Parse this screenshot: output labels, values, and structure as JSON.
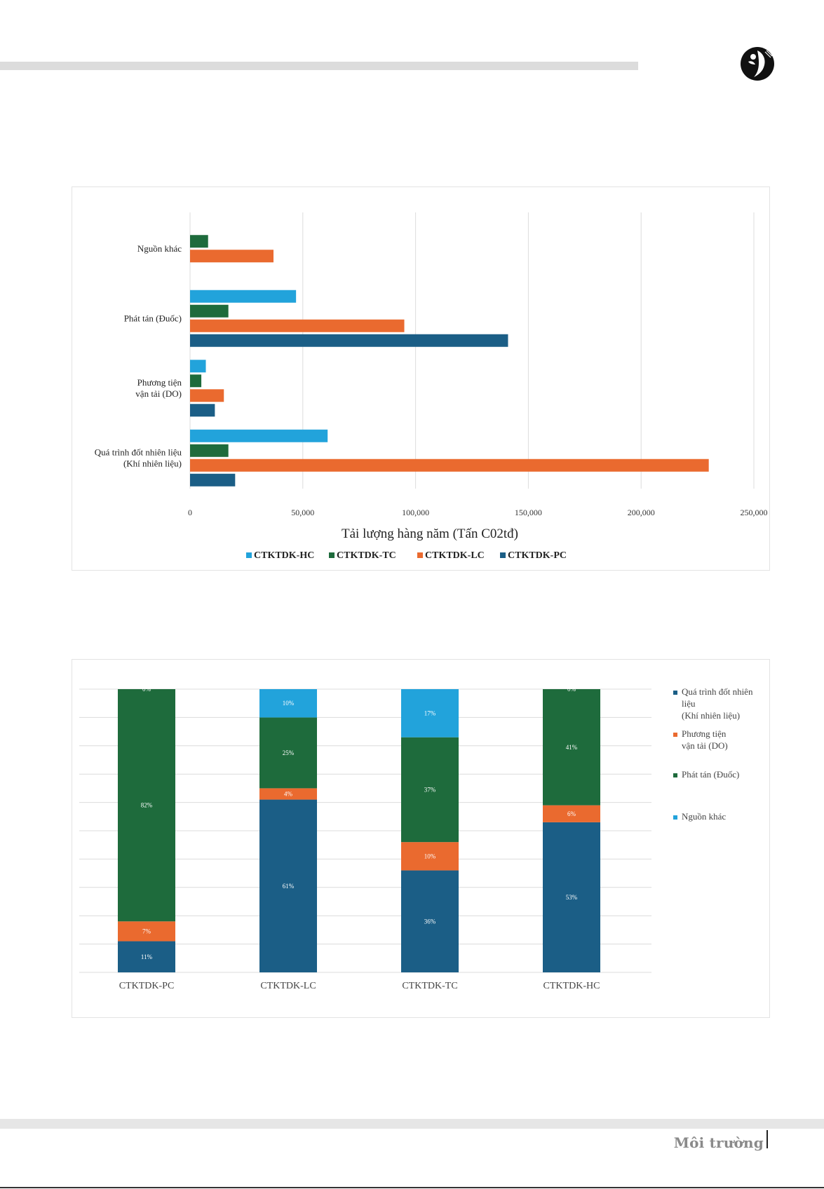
{
  "header": {
    "logo_icon": "leaf-person-logo-icon"
  },
  "footer": {
    "label": "Môi trường"
  },
  "colors": {
    "pc": "#1b5e86",
    "lc": "#ea6a2f",
    "tc": "#1e6b3c",
    "hc": "#22a3db",
    "grid": "#dcdcdc"
  },
  "chart_data": [
    {
      "type": "bar",
      "orientation": "horizontal",
      "categories": [
        "Nguồn khác",
        "Phát tán (Đuốc)",
        "Phương tiện vận tải (DO)",
        "Quá trình đốt nhiên liệu (Khí nhiên liệu)"
      ],
      "category_lines": [
        [
          "Nguồn khác"
        ],
        [
          "Phát tán (Đuốc)"
        ],
        [
          "Phương tiện",
          "vận tải (DO)"
        ],
        [
          "Quá trình đốt nhiên liệu",
          "(Khí nhiên liệu)"
        ]
      ],
      "series": [
        {
          "name": "CTKTDK-HC",
          "color": "#22a3db",
          "values": [
            0,
            47000,
            7000,
            61000
          ]
        },
        {
          "name": "CTKTDK-TC",
          "color": "#1e6b3c",
          "values": [
            8000,
            17000,
            5000,
            17000
          ]
        },
        {
          "name": "CTKTDK-LC",
          "color": "#ea6a2f",
          "values": [
            37000,
            95000,
            15000,
            230000
          ]
        },
        {
          "name": "CTKTDK-PC",
          "color": "#1b5e86",
          "values": [
            0,
            141000,
            11000,
            20000
          ]
        }
      ],
      "xlabel": "Tải lượng hàng năm (Tấn C02tđ)",
      "xlim": [
        0,
        250000
      ],
      "xticks": [
        "0",
        "50,000",
        "100,000",
        "150,000",
        "200,000",
        "250,000"
      ],
      "legend_position": "bottom",
      "grid": true
    },
    {
      "type": "bar",
      "stacked": true,
      "percent": true,
      "categories": [
        "CTKTDK-PC",
        "CTKTDK-LC",
        "CTKTDK-TC",
        "CTKTDK-HC"
      ],
      "series": [
        {
          "name": "Quá trình đốt nhiên liệu (Khí nhiên liệu)",
          "legend_lines": [
            "Quá trình đốt nhiên",
            "liệu",
            "(Khí nhiên liệu)"
          ],
          "color": "#1b5e86",
          "values": [
            11,
            61,
            36,
            53
          ],
          "labels": [
            "11%",
            "61%",
            "36%",
            "53%"
          ]
        },
        {
          "name": "Phương tiện vận tải (DO)",
          "legend_lines": [
            "Phương tiện",
            "vận tải (DO)"
          ],
          "color": "#ea6a2f",
          "values": [
            7,
            4,
            10,
            6
          ],
          "labels": [
            "7%",
            "4%",
            "10%",
            "6%"
          ]
        },
        {
          "name": "Phát tán (Đuốc)",
          "legend_lines": [
            "Phát tán (Đuốc)"
          ],
          "color": "#1e6b3c",
          "values": [
            82,
            25,
            37,
            41
          ],
          "labels": [
            "82%",
            "25%",
            "37%",
            "41%"
          ]
        },
        {
          "name": "Nguồn khác",
          "legend_lines": [
            "Nguồn khác"
          ],
          "color": "#22a3db",
          "values": [
            0,
            10,
            17,
            0
          ],
          "labels": [
            "0%",
            "10%",
            "17%",
            "0%"
          ]
        }
      ],
      "ylim": [
        0,
        100
      ],
      "legend_position": "right",
      "grid": true
    }
  ]
}
